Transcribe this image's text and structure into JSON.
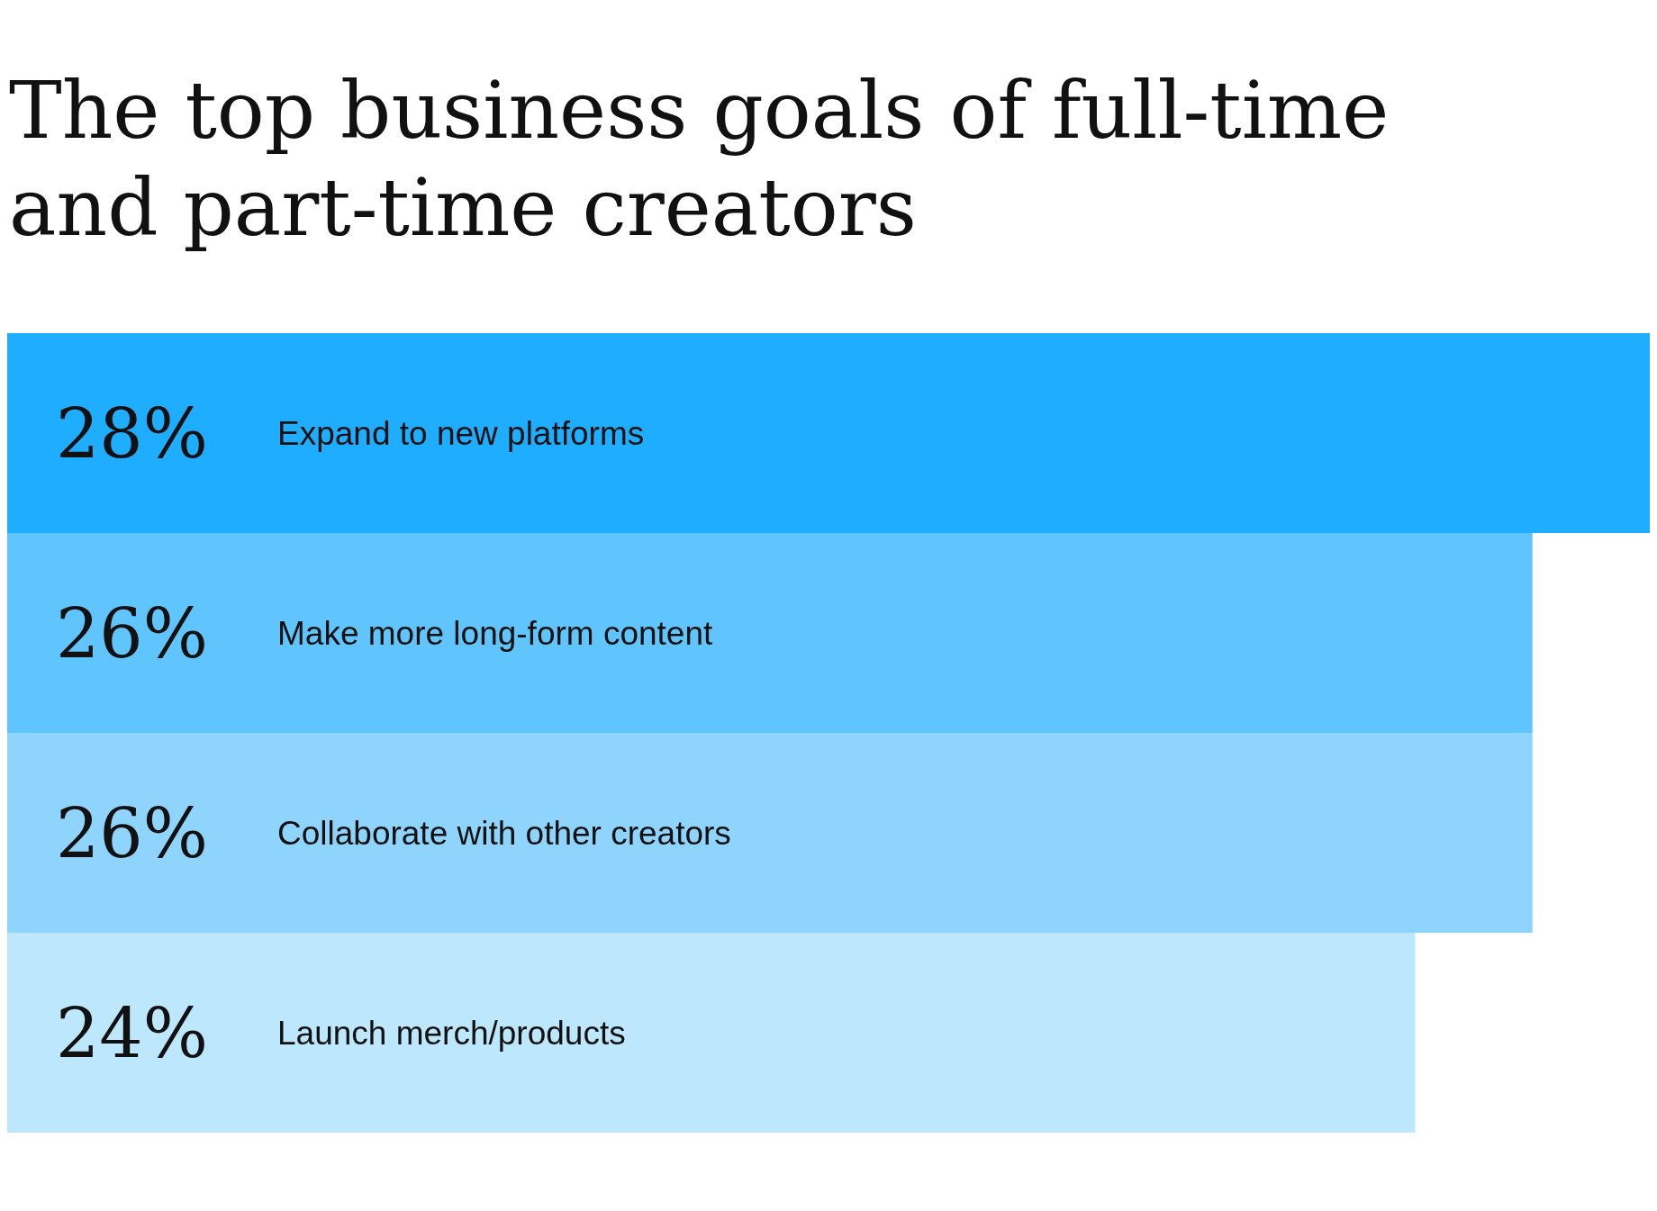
{
  "chart_data": {
    "type": "bar",
    "orientation": "horizontal",
    "title": "The top business goals of full-time and part-time creators",
    "categories": [
      "Expand to new platforms",
      "Make more long-form content",
      "Collaborate with other creators",
      "Launch merch/products"
    ],
    "values": [
      28,
      26,
      26,
      24
    ],
    "colors": [
      "#1fadff",
      "#61c5fd",
      "#8fd4fd",
      "#bde7fd"
    ],
    "value_labels": [
      "28%",
      "26%",
      "26%",
      "24%"
    ],
    "xlim": [
      0,
      28
    ],
    "tick_labels": false
  }
}
